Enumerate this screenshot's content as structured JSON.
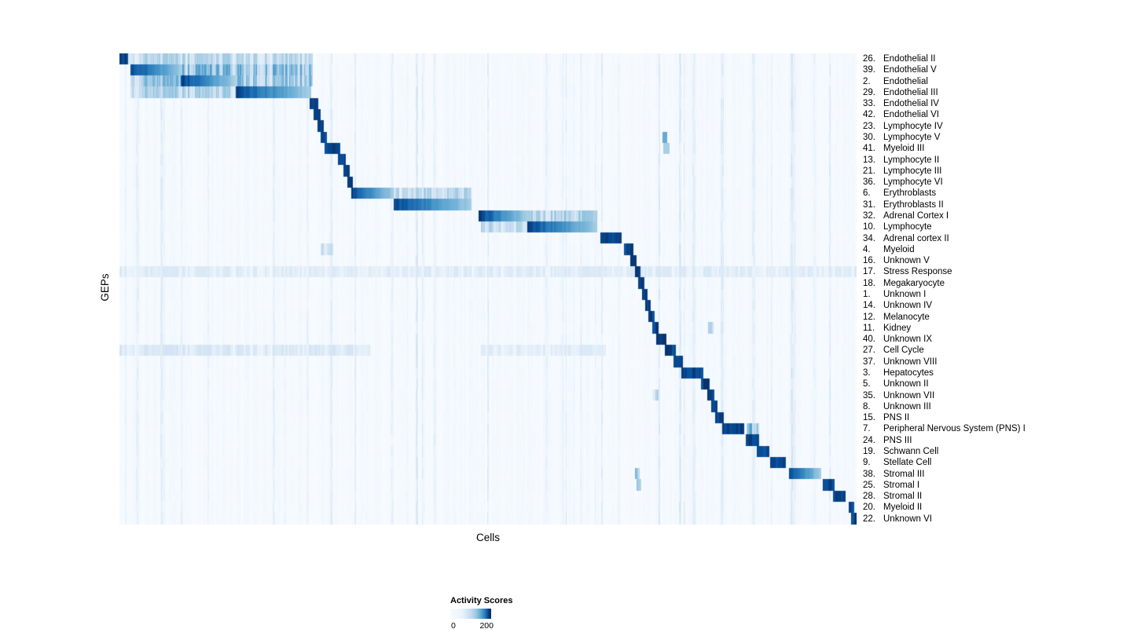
{
  "chart_data": {
    "type": "heatmap",
    "xlabel": "Cells",
    "ylabel": "GEPs",
    "value_range": [
      0,
      200
    ],
    "legend": {
      "title": "Activity Scores",
      "min_label": "0",
      "max_label": "200"
    },
    "colormap": {
      "name": "Blues",
      "stops": [
        [
          0,
          "#f7fbff"
        ],
        [
          0.13,
          "#deebf7"
        ],
        [
          0.26,
          "#c6dbef"
        ],
        [
          0.39,
          "#9ecae1"
        ],
        [
          0.52,
          "#6baed6"
        ],
        [
          0.65,
          "#4292c6"
        ],
        [
          0.78,
          "#2171b5"
        ],
        [
          0.9,
          "#08519c"
        ],
        [
          1,
          "#08306b"
        ]
      ]
    },
    "rows": [
      {
        "num": "26.",
        "name": "Endothelial II",
        "bands": [
          [
            0,
            0.012,
            1
          ],
          [
            0.012,
            0.262,
            0.32
          ]
        ]
      },
      {
        "num": "39.",
        "name": "Endothelial V",
        "bands": [
          [
            0.015,
            0.085,
            1
          ],
          [
            0.085,
            0.262,
            0.5
          ]
        ]
      },
      {
        "num": "2.",
        "name": "Endothelial",
        "bands": [
          [
            0.015,
            0.083,
            0.45
          ],
          [
            0.083,
            0.158,
            1
          ],
          [
            0.158,
            0.262,
            0.45
          ]
        ]
      },
      {
        "num": "29.",
        "name": "Endothelial III",
        "bands": [
          [
            0.015,
            0.158,
            0.35
          ],
          [
            0.158,
            0.26,
            1
          ]
        ]
      },
      {
        "num": "33.",
        "name": "Endothelial IV",
        "bands": [
          [
            0.258,
            0.27,
            1
          ]
        ]
      },
      {
        "num": "42.",
        "name": "Endothelial VI",
        "bands": [
          [
            0.263,
            0.273,
            1
          ]
        ]
      },
      {
        "num": "23.",
        "name": "Lymphocyte IV",
        "bands": [
          [
            0.269,
            0.277,
            1
          ]
        ]
      },
      {
        "num": "30.",
        "name": "Lymphocyte V",
        "bands": [
          [
            0.273,
            0.281,
            1
          ],
          [
            0.737,
            0.743,
            0.45
          ]
        ]
      },
      {
        "num": "41.",
        "name": "Myeloid III",
        "bands": [
          [
            0.278,
            0.3,
            1
          ],
          [
            0.738,
            0.746,
            0.3
          ]
        ]
      },
      {
        "num": "13.",
        "name": "Lymphocyte II",
        "bands": [
          [
            0.296,
            0.307,
            1
          ]
        ]
      },
      {
        "num": "21.",
        "name": "Lymphocyte III",
        "bands": [
          [
            0.304,
            0.312,
            1
          ]
        ]
      },
      {
        "num": "36.",
        "name": "Lymphocyte VI",
        "bands": [
          [
            0.309,
            0.317,
            1
          ]
        ]
      },
      {
        "num": "6.",
        "name": "Erythroblasts",
        "bands": [
          [
            0.315,
            0.372,
            1
          ],
          [
            0.372,
            0.478,
            0.32
          ]
        ]
      },
      {
        "num": "31.",
        "name": "Erythroblasts II",
        "bands": [
          [
            0.372,
            0.478,
            1
          ]
        ]
      },
      {
        "num": "32.",
        "name": "Adrenal Cortex I",
        "bands": [
          [
            0.487,
            0.553,
            1
          ],
          [
            0.553,
            0.648,
            0.35
          ]
        ]
      },
      {
        "num": "10.",
        "name": "Lymphocyte",
        "bands": [
          [
            0.49,
            0.553,
            0.3
          ],
          [
            0.553,
            0.648,
            1
          ]
        ]
      },
      {
        "num": "34.",
        "name": "Adrenal cortex II",
        "bands": [
          [
            0.652,
            0.681,
            1
          ]
        ]
      },
      {
        "num": "4.",
        "name": "Myeloid",
        "bands": [
          [
            0.273,
            0.29,
            0.25
          ],
          [
            0.684,
            0.697,
            1
          ]
        ]
      },
      {
        "num": "16.",
        "name": "Unknown V",
        "bands": [
          [
            0.693,
            0.702,
            1
          ]
        ]
      },
      {
        "num": "17.",
        "name": "Stress Response",
        "bands": [
          [
            0,
            1,
            0.13
          ],
          [
            0.699,
            0.707,
            1
          ]
        ]
      },
      {
        "num": "18.",
        "name": "Megakaryocyte",
        "bands": [
          [
            0.704,
            0.712,
            1
          ]
        ]
      },
      {
        "num": "1.",
        "name": "Unknown I",
        "bands": [
          [
            0.709,
            0.716,
            1
          ]
        ]
      },
      {
        "num": "14.",
        "name": "Unknown IV",
        "bands": [
          [
            0.713,
            0.721,
            1
          ]
        ]
      },
      {
        "num": "12.",
        "name": "Melanocyte",
        "bands": [
          [
            0.718,
            0.726,
            1
          ]
        ]
      },
      {
        "num": "11.",
        "name": "Kidney",
        "bands": [
          [
            0.723,
            0.731,
            1
          ],
          [
            0.799,
            0.806,
            0.3
          ]
        ]
      },
      {
        "num": "40.",
        "name": "Unknown IX",
        "bands": [
          [
            0.728,
            0.742,
            1
          ]
        ]
      },
      {
        "num": "27.",
        "name": "Cell Cycle",
        "bands": [
          [
            0,
            0.34,
            0.16
          ],
          [
            0.49,
            0.66,
            0.12
          ],
          [
            0.74,
            0.755,
            1
          ]
        ]
      },
      {
        "num": "37.",
        "name": "Unknown VIII",
        "bands": [
          [
            0.752,
            0.764,
            1
          ]
        ]
      },
      {
        "num": "3.",
        "name": "Hepatocytes",
        "bands": [
          [
            0.762,
            0.792,
            1
          ]
        ]
      },
      {
        "num": "5.",
        "name": "Unknown II",
        "bands": [
          [
            0.789,
            0.801,
            1
          ]
        ]
      },
      {
        "num": "35.",
        "name": "Unknown VII",
        "bands": [
          [
            0.723,
            0.731,
            0.3
          ],
          [
            0.797,
            0.807,
            1
          ]
        ]
      },
      {
        "num": "8.",
        "name": "Unknown III",
        "bands": [
          [
            0.803,
            0.811,
            1
          ]
        ]
      },
      {
        "num": "15.",
        "name": "PNS II",
        "bands": [
          [
            0.808,
            0.82,
            1
          ]
        ]
      },
      {
        "num": "7.",
        "name": "Peripheral Nervous System (PNS) I",
        "bands": [
          [
            0.818,
            0.848,
            1
          ],
          [
            0.851,
            0.868,
            0.5
          ]
        ]
      },
      {
        "num": "24.",
        "name": "PNS III",
        "bands": [
          [
            0.85,
            0.868,
            1
          ]
        ]
      },
      {
        "num": "19.",
        "name": "Schwann Cell",
        "bands": [
          [
            0.865,
            0.882,
            1
          ]
        ]
      },
      {
        "num": "9.",
        "name": "Stellate Cell",
        "bands": [
          [
            0.883,
            0.904,
            1
          ]
        ]
      },
      {
        "num": "38.",
        "name": "Stromal III",
        "bands": [
          [
            0.699,
            0.706,
            0.4
          ],
          [
            0.908,
            0.952,
            1
          ]
        ]
      },
      {
        "num": "25.",
        "name": "Stromal I",
        "bands": [
          [
            0.701,
            0.708,
            0.35
          ],
          [
            0.954,
            0.97,
            1
          ]
        ]
      },
      {
        "num": "28.",
        "name": "Stromal II",
        "bands": [
          [
            0.968,
            0.985,
            1
          ]
        ]
      },
      {
        "num": "20.",
        "name": "Myeloid II",
        "bands": [
          [
            0.989,
            0.997,
            1
          ]
        ]
      },
      {
        "num": "22.",
        "name": "Unknown VI",
        "bands": [
          [
            0.993,
            1,
            1
          ]
        ]
      }
    ]
  }
}
